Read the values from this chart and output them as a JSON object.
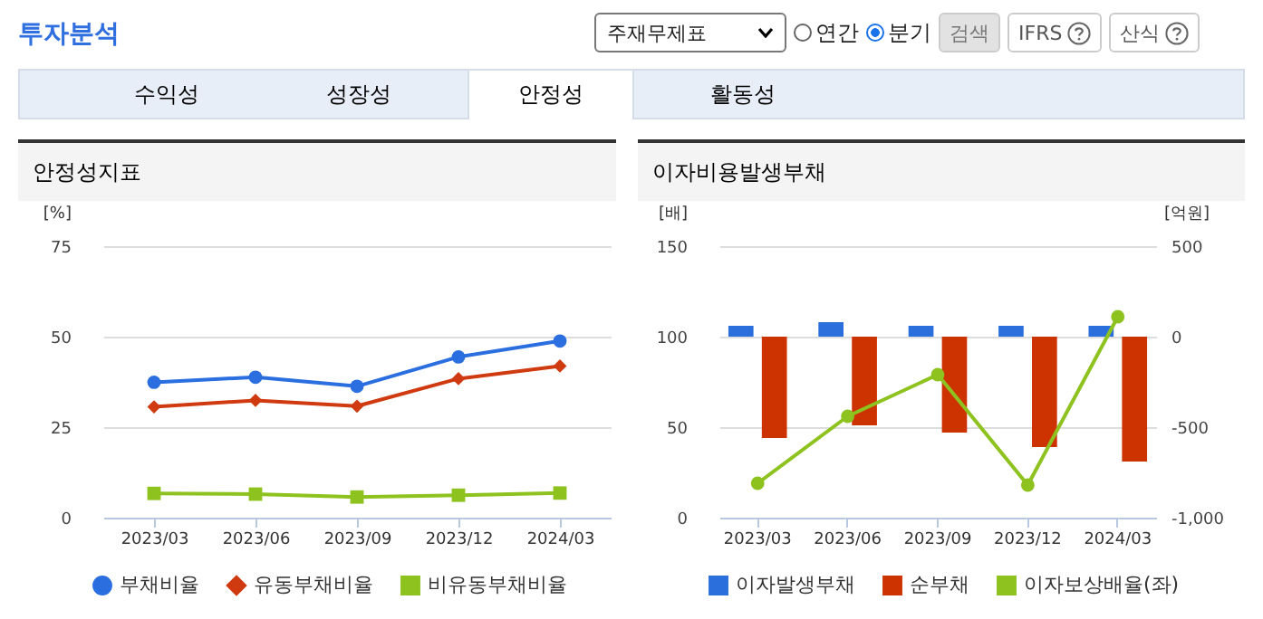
{
  "chart_data": [
    {
      "type": "other",
      "title": "투자분석",
      "annotations": [
        "주재무제표",
        "연간",
        "분기",
        "검색",
        "IFRS",
        "산식",
        "수익성",
        "성장성",
        "안정성",
        "활동성"
      ]
    },
    {
      "type": "line",
      "title": "안정성지표",
      "ylabel": "[%]",
      "categories": [
        "2023/03",
        "2023/06",
        "2023/09",
        "2023/12",
        "2024/03"
      ],
      "ylim": [
        0,
        75
      ],
      "yticks": [
        0,
        25,
        50,
        75
      ],
      "grid": "y",
      "legend": "bottom",
      "series": [
        {
          "name": "부채비율",
          "color": "#2b6ee0",
          "marker": "circle",
          "values": [
            37.4,
            38.8,
            36.3,
            44.4,
            48.8
          ]
        },
        {
          "name": "유동부채비율",
          "color": "#d03a10",
          "marker": "diamond",
          "values": [
            30.6,
            32.4,
            30.8,
            38.4,
            41.9
          ]
        },
        {
          "name": "비유동부채비율",
          "color": "#8dc21f",
          "marker": "square",
          "values": [
            6.7,
            6.5,
            5.7,
            6.2,
            6.8
          ]
        }
      ]
    },
    {
      "type": "bar",
      "title": "이자비용발생부채",
      "ylabel": "[배]",
      "y2label": "[억원]",
      "categories": [
        "2023/03",
        "2023/06",
        "2023/09",
        "2023/12",
        "2024/03"
      ],
      "ylim": [
        0,
        150
      ],
      "yticks": [
        0,
        50,
        100,
        150
      ],
      "y2lim": [
        -1000,
        500
      ],
      "y2ticks": [
        {
          "value": -1000,
          "label": "-1,000"
        },
        -500,
        0,
        500
      ],
      "grid": "y",
      "legend": "bottom",
      "series": [
        {
          "name": "이자발생부채",
          "color": "#2a6fdb",
          "axis": "y2",
          "values": [
            60,
            80,
            60,
            60,
            60
          ]
        },
        {
          "name": "순부채",
          "color": "#cc3300",
          "axis": "y2",
          "values": [
            -560,
            -490,
            -530,
            -610,
            -690
          ]
        },
        {
          "name": "이자보상배율(좌)",
          "type": "line",
          "color": "#8dc21f",
          "marker": "circle",
          "axis": "y",
          "values": [
            19,
            56,
            79,
            18,
            111
          ]
        }
      ]
    }
  ]
}
